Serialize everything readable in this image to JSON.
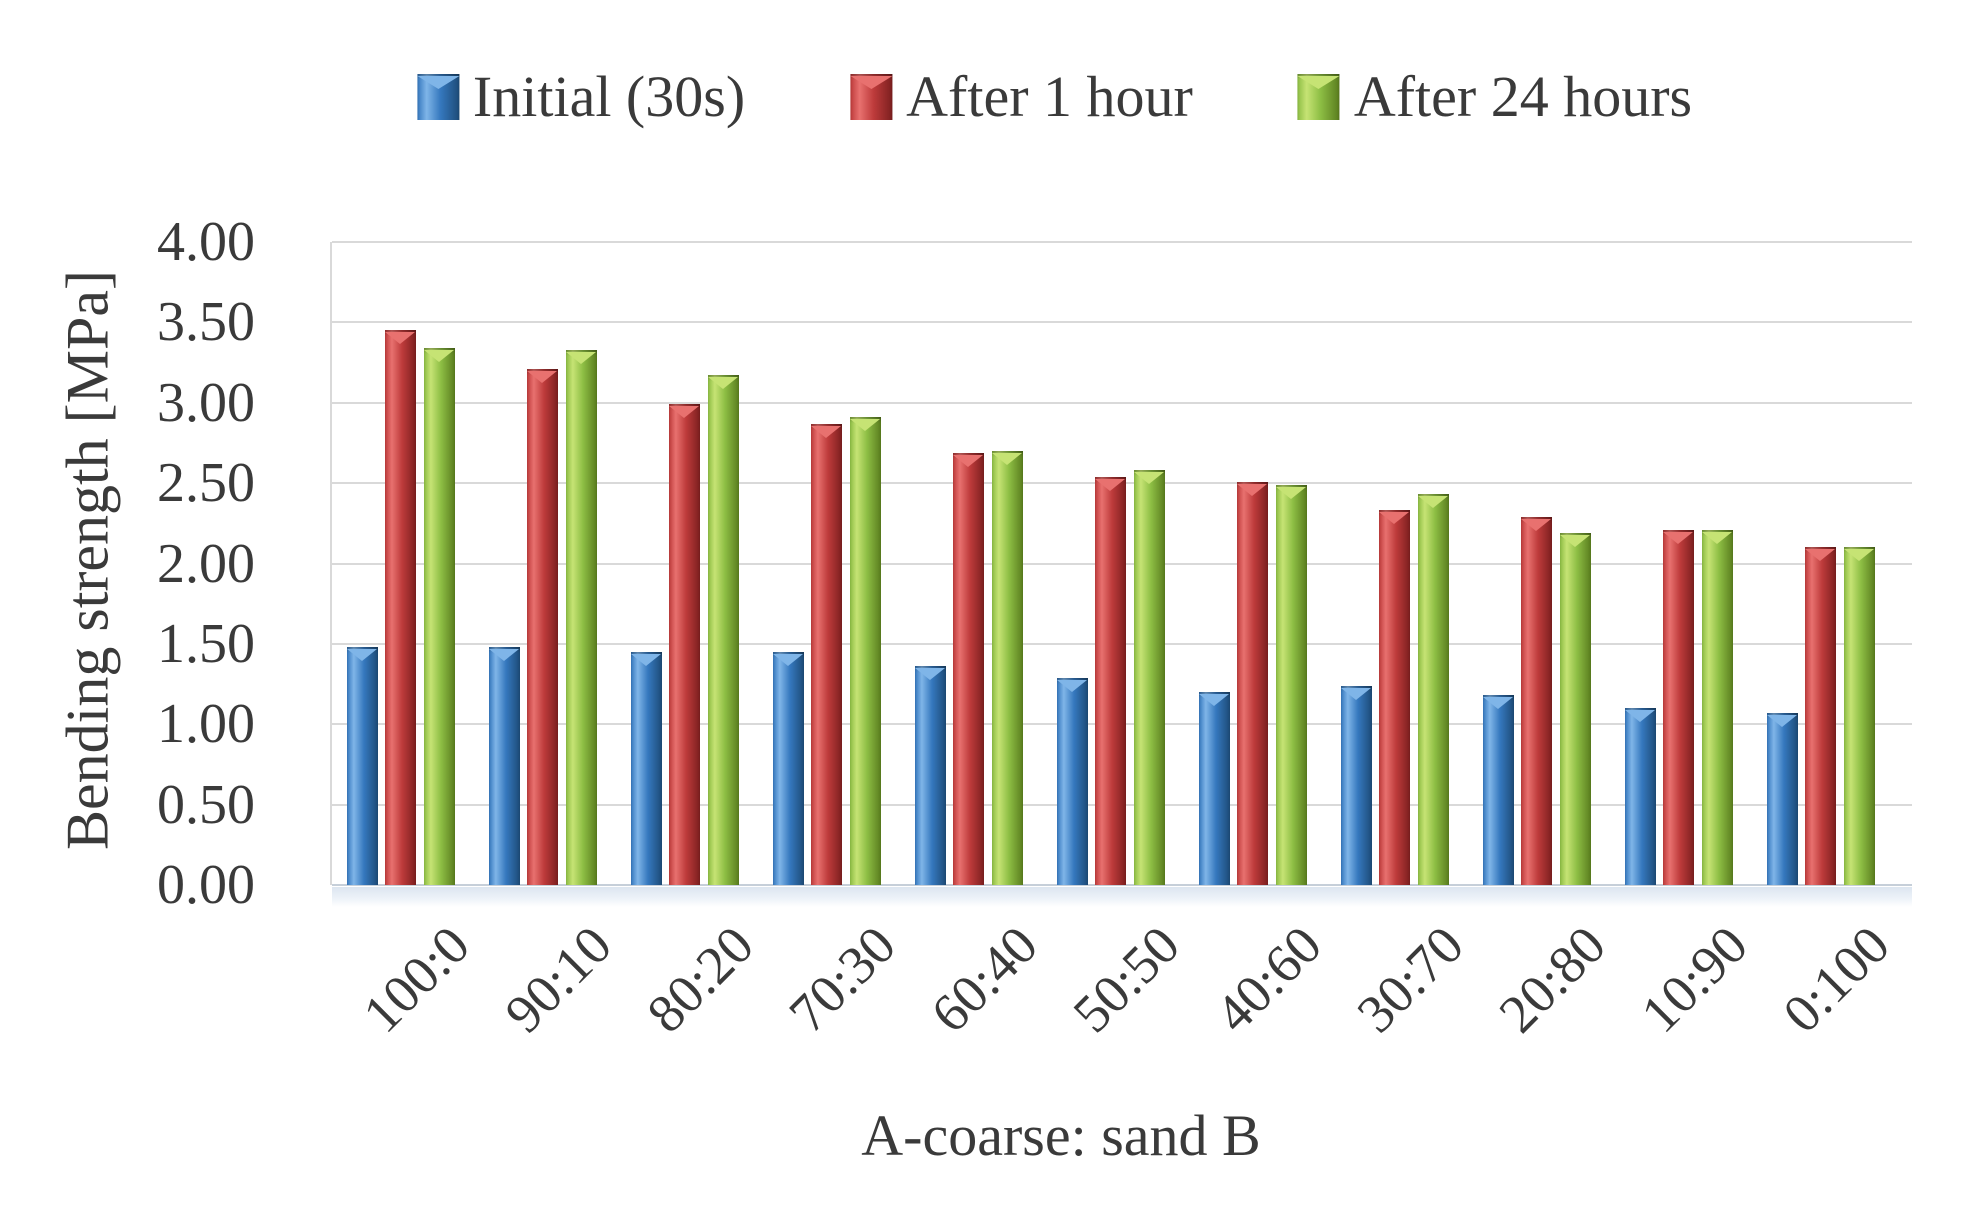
{
  "figure": {
    "background": "#FFFFFF"
  },
  "chart_data": {
    "type": "bar",
    "title": "",
    "xlabel": "A-coarse: sand B",
    "ylabel": "Bending strength [MPa]",
    "categories": [
      "100:0",
      "90:10",
      "80:20",
      "70:30",
      "60:40",
      "50:50",
      "40:60",
      "30:70",
      "20:80",
      "10:90",
      "0:100"
    ],
    "series": [
      {
        "name": "Initial (30s)",
        "color": "#3578BE",
        "color_light": "#7FB5E8",
        "color_dark": "#1D4B77",
        "values": [
          1.48,
          1.48,
          1.45,
          1.45,
          1.36,
          1.29,
          1.2,
          1.24,
          1.18,
          1.1,
          1.07
        ]
      },
      {
        "name": "After 1 hour",
        "color": "#BE3B3B",
        "color_light": "#E8716F",
        "color_dark": "#7C1F1F",
        "values": [
          3.45,
          3.21,
          2.99,
          2.87,
          2.69,
          2.54,
          2.51,
          2.33,
          2.29,
          2.21,
          2.1
        ]
      },
      {
        "name": "After 24 hours",
        "color": "#8DBE44",
        "color_light": "#C6E374",
        "color_dark": "#5A7D1E",
        "values": [
          3.34,
          3.33,
          3.17,
          2.91,
          2.7,
          2.58,
          2.49,
          2.43,
          2.19,
          2.21,
          2.1
        ]
      }
    ],
    "ylim": [
      0,
      4
    ],
    "ytick_step": 0.5,
    "ytick_labels": [
      "0.00",
      "0.50",
      "1.00",
      "1.50",
      "2.00",
      "2.50",
      "3.00",
      "3.50",
      "4.00"
    ],
    "grid": true,
    "grid_color": "#D9D9D9",
    "axis_text_color": "#3A3A3A",
    "legend_position": "top"
  }
}
